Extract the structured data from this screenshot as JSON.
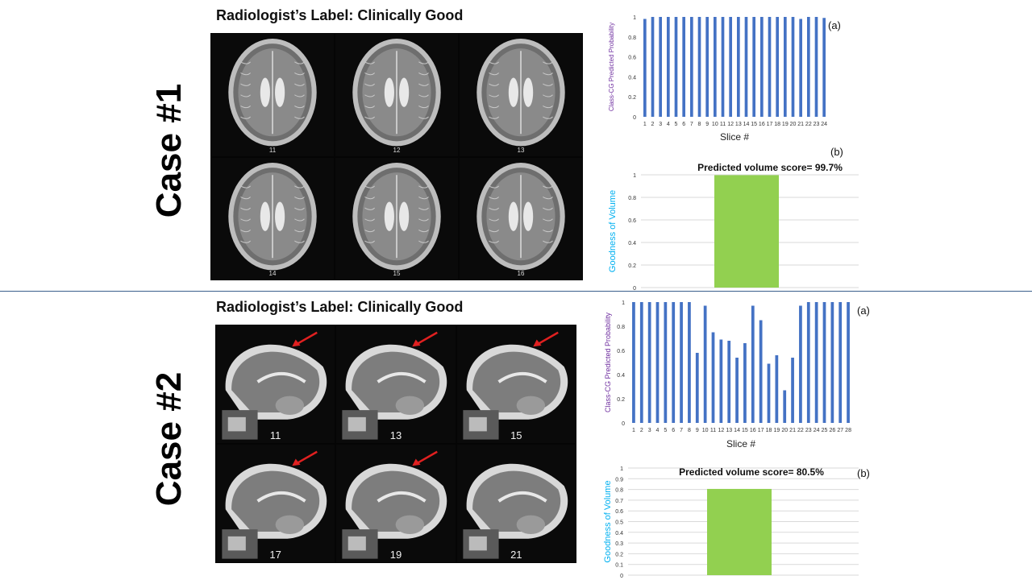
{
  "cases": [
    {
      "case_label": "Case #1",
      "radiologist_label": "Radiologist’s Label: Clinically Good",
      "mri_slices": [
        "11",
        "12",
        "13",
        "14",
        "15",
        "16"
      ],
      "panel_a_tag": "(a)",
      "panel_b_tag": "(b)"
    },
    {
      "case_label": "Case #2",
      "radiologist_label": "Radiologist’s Label: Clinically Good",
      "mri_slices": [
        "11",
        "13",
        "15",
        "17",
        "19",
        "21"
      ],
      "panel_a_tag": "(a)",
      "panel_b_tag": "(b)"
    }
  ],
  "colors": {
    "slice_bar": "#4472c4",
    "volume_bar": "#92d050",
    "ylabel_slice": "#7030a0",
    "ylabel_volume": "#00b0f0",
    "arrow": "#e02020",
    "divider": "#3a5f8c"
  },
  "chart_data": [
    {
      "type": "bar",
      "title": "",
      "xlabel": "Slice #",
      "ylabel": "Class-CG  Predicted Probability",
      "ylim": [
        0,
        1
      ],
      "yticks": [
        "0",
        "0.2",
        "0.4",
        "0.6",
        "0.8",
        "1"
      ],
      "categories": [
        "1",
        "2",
        "3",
        "4",
        "5",
        "6",
        "7",
        "8",
        "9",
        "10",
        "11",
        "12",
        "13",
        "14",
        "15",
        "16",
        "17",
        "18",
        "19",
        "20",
        "21",
        "22",
        "23",
        "24"
      ],
      "values": [
        0.98,
        1,
        1,
        1,
        1,
        1,
        1,
        1,
        1,
        1,
        1,
        1,
        1,
        1,
        1,
        1,
        1,
        1,
        1,
        1,
        0.98,
        1,
        1,
        0.99
      ]
    },
    {
      "type": "bar",
      "title": "Predicted volume score= 99.7%",
      "xlabel": "",
      "ylabel": "Goodness  of  Volume",
      "ylim": [
        0,
        1
      ],
      "yticks": [
        "0",
        "0.2",
        "0.4",
        "0.6",
        "0.8",
        "1"
      ],
      "categories": [
        ""
      ],
      "values": [
        0.997
      ]
    },
    {
      "type": "bar",
      "title": "",
      "xlabel": "Slice #",
      "ylabel": "Class-CG  Predicted Probability",
      "ylim": [
        0,
        1
      ],
      "yticks": [
        "0",
        "0.2",
        "0.4",
        "0.6",
        "0.8",
        "1"
      ],
      "categories": [
        "1",
        "2",
        "3",
        "4",
        "5",
        "6",
        "7",
        "8",
        "9",
        "10",
        "11",
        "12",
        "13",
        "14",
        "15",
        "16",
        "17",
        "18",
        "19",
        "20",
        "21",
        "22",
        "23",
        "24",
        "25",
        "26",
        "27",
        "28"
      ],
      "values": [
        1,
        1,
        1,
        1,
        1,
        1,
        1,
        1,
        0.58,
        0.97,
        0.75,
        0.69,
        0.68,
        0.54,
        0.66,
        0.97,
        0.85,
        0.49,
        0.56,
        0.27,
        0.54,
        0.97,
        1,
        1,
        1,
        1,
        1,
        1
      ]
    },
    {
      "type": "bar",
      "title": "Predicted volume score= 80.5%",
      "xlabel": "",
      "ylabel": "Goodness  of  Volume",
      "ylim": [
        0,
        1
      ],
      "yticks": [
        "0",
        "0.1",
        "0.2",
        "0.3",
        "0.4",
        "0.5",
        "0.6",
        "0.7",
        "0.8",
        "0.9",
        "1"
      ],
      "categories": [
        ""
      ],
      "values": [
        0.805
      ]
    }
  ]
}
